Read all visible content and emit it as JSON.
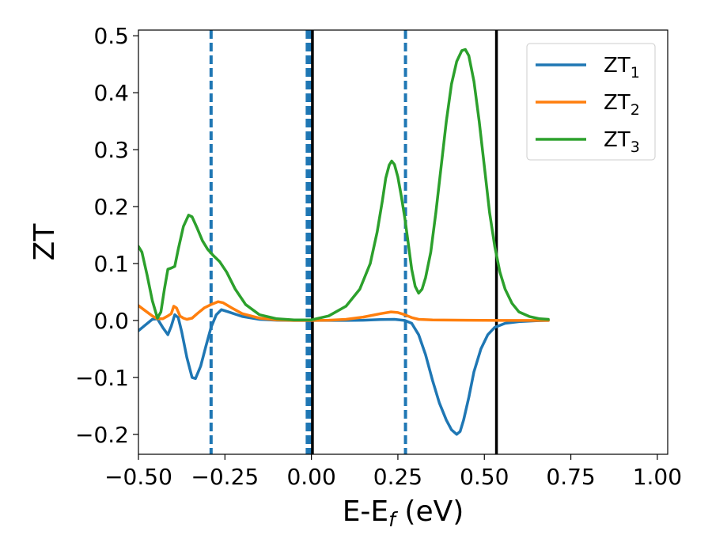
{
  "chart_data": {
    "type": "line",
    "title": "",
    "xlabel": "E-E",
    "xlabel_sub": "f",
    "xlabel_unit": " (eV)",
    "ylabel": "ZT",
    "xlim": [
      -0.5,
      1.03
    ],
    "ylim": [
      -0.235,
      0.51
    ],
    "xticks": [
      -0.5,
      -0.25,
      0.0,
      0.25,
      0.5,
      0.75,
      1.0
    ],
    "xtick_labels": [
      "−0.50",
      "−0.25",
      "0.00",
      "0.25",
      "0.50",
      "0.75",
      "1.00"
    ],
    "yticks": [
      -0.2,
      -0.1,
      0.0,
      0.1,
      0.2,
      0.3,
      0.4,
      0.5
    ],
    "ytick_labels": [
      "−0.2",
      "−0.1",
      "0.0",
      "0.1",
      "0.2",
      "0.3",
      "0.4",
      "0.5"
    ],
    "grid": false,
    "legend_position": "top-right",
    "series": [
      {
        "name": "ZT",
        "name_sub": "1",
        "color": "#1f77b4",
        "points": [
          [
            -0.5,
            -0.018
          ],
          [
            -0.48,
            -0.008
          ],
          [
            -0.46,
            0.002
          ],
          [
            -0.445,
            0.003
          ],
          [
            -0.43,
            -0.012
          ],
          [
            -0.415,
            -0.025
          ],
          [
            -0.405,
            -0.01
          ],
          [
            -0.395,
            0.01
          ],
          [
            -0.385,
            0.005
          ],
          [
            -0.375,
            -0.02
          ],
          [
            -0.36,
            -0.065
          ],
          [
            -0.345,
            -0.1
          ],
          [
            -0.335,
            -0.102
          ],
          [
            -0.32,
            -0.08
          ],
          [
            -0.305,
            -0.045
          ],
          [
            -0.29,
            -0.012
          ],
          [
            -0.275,
            0.01
          ],
          [
            -0.26,
            0.019
          ],
          [
            -0.24,
            0.015
          ],
          [
            -0.2,
            0.007
          ],
          [
            -0.15,
            0.002
          ],
          [
            -0.1,
            0.0005
          ],
          [
            -0.05,
            0.0
          ],
          [
            0.0,
            0.0
          ],
          [
            0.05,
            0.0
          ],
          [
            0.1,
            0.0
          ],
          [
            0.15,
            0.0005
          ],
          [
            0.2,
            0.0015
          ],
          [
            0.24,
            0.002
          ],
          [
            0.27,
            0.0
          ],
          [
            0.29,
            -0.005
          ],
          [
            0.31,
            -0.025
          ],
          [
            0.33,
            -0.06
          ],
          [
            0.35,
            -0.105
          ],
          [
            0.37,
            -0.145
          ],
          [
            0.39,
            -0.175
          ],
          [
            0.405,
            -0.192
          ],
          [
            0.42,
            -0.2
          ],
          [
            0.43,
            -0.195
          ],
          [
            0.44,
            -0.175
          ],
          [
            0.455,
            -0.135
          ],
          [
            0.47,
            -0.09
          ],
          [
            0.49,
            -0.05
          ],
          [
            0.51,
            -0.025
          ],
          [
            0.53,
            -0.012
          ],
          [
            0.56,
            -0.005
          ],
          [
            0.6,
            -0.002
          ],
          [
            0.65,
            -0.0005
          ],
          [
            0.685,
            0.0
          ]
        ]
      },
      {
        "name": "ZT",
        "name_sub": "2",
        "color": "#ff7f0e",
        "points": [
          [
            -0.5,
            0.026
          ],
          [
            -0.48,
            0.017
          ],
          [
            -0.46,
            0.008
          ],
          [
            -0.445,
            0.003
          ],
          [
            -0.43,
            0.003
          ],
          [
            -0.415,
            0.008
          ],
          [
            -0.405,
            0.012
          ],
          [
            -0.398,
            0.025
          ],
          [
            -0.39,
            0.022
          ],
          [
            -0.38,
            0.008
          ],
          [
            -0.37,
            0.004
          ],
          [
            -0.36,
            0.002
          ],
          [
            -0.345,
            0.004
          ],
          [
            -0.33,
            0.012
          ],
          [
            -0.31,
            0.022
          ],
          [
            -0.29,
            0.028
          ],
          [
            -0.27,
            0.033
          ],
          [
            -0.255,
            0.031
          ],
          [
            -0.23,
            0.022
          ],
          [
            -0.2,
            0.012
          ],
          [
            -0.15,
            0.004
          ],
          [
            -0.1,
            0.001
          ],
          [
            -0.05,
            0.0
          ],
          [
            0.0,
            0.0
          ],
          [
            0.05,
            0.0005
          ],
          [
            0.1,
            0.002
          ],
          [
            0.15,
            0.006
          ],
          [
            0.2,
            0.012
          ],
          [
            0.23,
            0.015
          ],
          [
            0.25,
            0.014
          ],
          [
            0.27,
            0.01
          ],
          [
            0.29,
            0.005
          ],
          [
            0.31,
            0.002
          ],
          [
            0.35,
            0.001
          ],
          [
            0.45,
            0.0005
          ],
          [
            0.55,
            0.0
          ],
          [
            0.685,
            0.0
          ]
        ]
      },
      {
        "name": "ZT",
        "name_sub": "3",
        "color": "#2ca02c",
        "points": [
          [
            -0.5,
            0.13
          ],
          [
            -0.49,
            0.12
          ],
          [
            -0.475,
            0.08
          ],
          [
            -0.46,
            0.035
          ],
          [
            -0.445,
            0.004
          ],
          [
            -0.435,
            0.015
          ],
          [
            -0.425,
            0.055
          ],
          [
            -0.415,
            0.09
          ],
          [
            -0.405,
            0.092
          ],
          [
            -0.395,
            0.095
          ],
          [
            -0.385,
            0.125
          ],
          [
            -0.37,
            0.165
          ],
          [
            -0.355,
            0.185
          ],
          [
            -0.345,
            0.182
          ],
          [
            -0.33,
            0.162
          ],
          [
            -0.315,
            0.14
          ],
          [
            -0.3,
            0.125
          ],
          [
            -0.285,
            0.115
          ],
          [
            -0.265,
            0.103
          ],
          [
            -0.245,
            0.085
          ],
          [
            -0.22,
            0.055
          ],
          [
            -0.19,
            0.028
          ],
          [
            -0.15,
            0.01
          ],
          [
            -0.1,
            0.003
          ],
          [
            -0.05,
            0.001
          ],
          [
            0.0,
            0.001
          ],
          [
            0.05,
            0.008
          ],
          [
            0.1,
            0.025
          ],
          [
            0.14,
            0.055
          ],
          [
            0.17,
            0.1
          ],
          [
            0.19,
            0.155
          ],
          [
            0.205,
            0.21
          ],
          [
            0.215,
            0.25
          ],
          [
            0.225,
            0.273
          ],
          [
            0.232,
            0.28
          ],
          [
            0.24,
            0.274
          ],
          [
            0.25,
            0.252
          ],
          [
            0.26,
            0.218
          ],
          [
            0.27,
            0.18
          ],
          [
            0.28,
            0.135
          ],
          [
            0.29,
            0.09
          ],
          [
            0.3,
            0.06
          ],
          [
            0.31,
            0.048
          ],
          [
            0.32,
            0.055
          ],
          [
            0.33,
            0.075
          ],
          [
            0.345,
            0.12
          ],
          [
            0.36,
            0.19
          ],
          [
            0.375,
            0.27
          ],
          [
            0.39,
            0.35
          ],
          [
            0.405,
            0.415
          ],
          [
            0.42,
            0.455
          ],
          [
            0.435,
            0.474
          ],
          [
            0.445,
            0.476
          ],
          [
            0.455,
            0.465
          ],
          [
            0.47,
            0.42
          ],
          [
            0.485,
            0.35
          ],
          [
            0.5,
            0.27
          ],
          [
            0.515,
            0.19
          ],
          [
            0.53,
            0.13
          ],
          [
            0.545,
            0.085
          ],
          [
            0.56,
            0.055
          ],
          [
            0.58,
            0.03
          ],
          [
            0.6,
            0.015
          ],
          [
            0.63,
            0.007
          ],
          [
            0.66,
            0.003
          ],
          [
            0.685,
            0.002
          ]
        ]
      }
    ],
    "vertical_lines": [
      {
        "x": -0.29,
        "color": "#1f77b4",
        "style": "dashed",
        "width": 4
      },
      {
        "x": -0.012,
        "color": "#1f77b4",
        "style": "dashed",
        "width": 4
      },
      {
        "x": -0.004,
        "color": "#1f77b4",
        "style": "dashed",
        "width": 4
      },
      {
        "x": 0.003,
        "color": "#000000",
        "style": "solid",
        "width": 3.5
      },
      {
        "x": 0.272,
        "color": "#1f77b4",
        "style": "dashed",
        "width": 4
      },
      {
        "x": 0.535,
        "color": "#000000",
        "style": "solid",
        "width": 3.5
      }
    ]
  }
}
